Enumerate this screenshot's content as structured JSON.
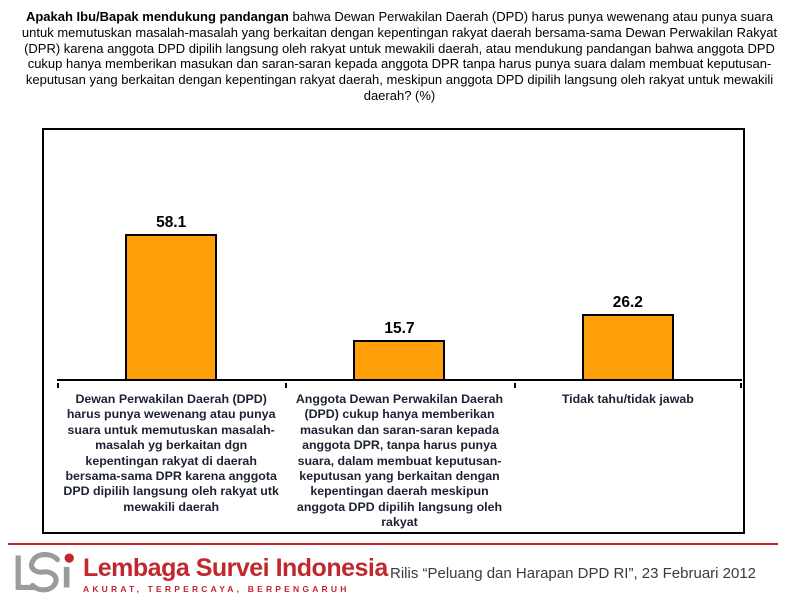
{
  "title": {
    "lead_bold": "Apakah Ibu/Bapak mendukung pandangan",
    "body": " bahwa Dewan Perwakilan Daerah (DPD) harus punya wewenang atau punya suara untuk memutuskan masalah-masalah yang berkaitan dengan kepentingan rakyat daerah bersama-sama Dewan Perwakilan Rakyat (DPR) karena anggota DPD dipilih langsung oleh rakyat untuk mewakili daerah, atau mendukung pandangan bahwa anggota DPD cukup hanya memberikan masukan dan saran-saran kepada anggota DPR tanpa harus punya suara dalam membuat keputusan-keputusan yang berkaitan dengan kepentingan rakyat daerah, meskipun anggota DPD dipilih langsung oleh rakyat untuk mewakili daerah?  (%)"
  },
  "chart_data": {
    "type": "bar",
    "title": "Apakah Ibu/Bapak mendukung pandangan bahwa Dewan Perwakilan Daerah (DPD) harus punya wewenang atau punya suara untuk memutuskan masalah-masalah yang berkaitan dengan kepentingan rakyat daerah bersama-sama Dewan Perwakilan Rakyat (DPR) karena anggota DPD dipilih langsung oleh rakyat untuk mewakili daerah, atau mendukung pandangan bahwa anggota DPD cukup hanya memberikan masukan dan saran-saran kepada anggota DPR tanpa harus punya suara dalam membuat keputusan-keputusan yang berkaitan dengan kepentingan rakyat daerah, meskipun anggota DPD dipilih langsung oleh rakyat untuk mewakili daerah? (%)",
    "categories": [
      "Dewan Perwakilan Daerah (DPD) harus punya wewenang atau punya suara untuk memutuskan masalah-masalah yg berkaitan dgn kepentingan rakyat di daerah bersama-sama DPR karena anggota DPD dipilih langsung oleh rakyat utk mewakili daerah",
      "Anggota Dewan Perwakilan Daerah (DPD) cukup hanya memberikan masukan dan saran-saran kepada anggota DPR, tanpa harus punya suara, dalam membuat keputusan-keputusan yang berkaitan dengan kepentingan daerah meskipun anggota DPD dipilih langsung oleh rakyat",
      "Tidak tahu/tidak jawab"
    ],
    "values": [
      58.1,
      15.7,
      26.2
    ],
    "value_labels": [
      "58.1",
      "15.7",
      "26.2"
    ],
    "xlabel": "",
    "ylabel": "",
    "ylim": [
      0,
      100
    ],
    "grid": false,
    "legend": "none",
    "bar_color": "#FFA00A",
    "bar_border_color": "#000000",
    "label_color": "#1c2233"
  },
  "footer": {
    "brand_name": "Lembaga Survei Indonesia",
    "brand_tagline": "AKURAT, TERPERCAYA, BERPENGARUH",
    "release_note": "Rilis “Peluang dan Harapan DPD RI”, 23 Februari 2012",
    "accent_color": "#C1272D",
    "logo_gray": "#9B9B9B"
  }
}
